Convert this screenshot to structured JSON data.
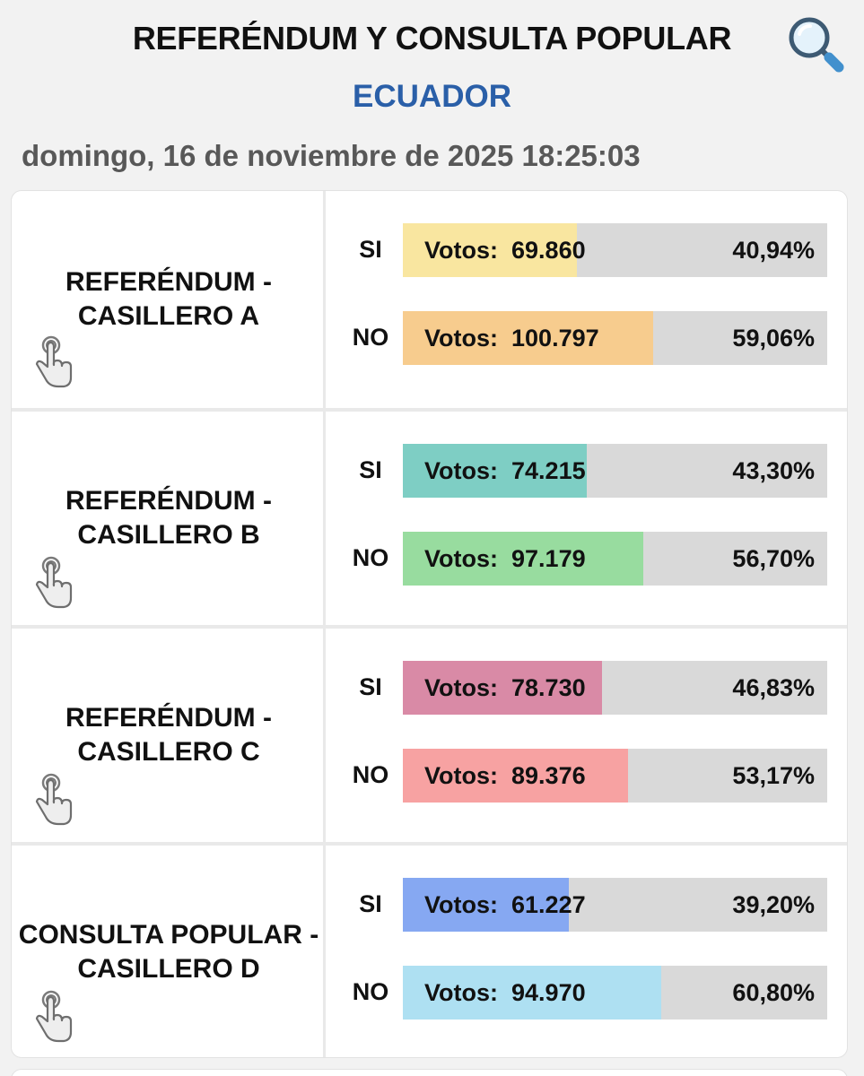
{
  "header": {
    "title": "REFERÉNDUM Y CONSULTA POPULAR",
    "subtitle": "ECUADOR",
    "datetime": "domingo, 16 de noviembre de 2025 18:25:03",
    "search_icon": "search-icon"
  },
  "colors": {
    "title": "#111111",
    "subtitle": "#2a5fa8",
    "datetime": "#585858",
    "bar_track": "#d9d9d9"
  },
  "questions": [
    {
      "name": "REFERÉNDUM - CASILLERO A",
      "icon": "tap-hand-icon",
      "options": [
        {
          "label": "SI",
          "votes_prefix": "Votos:",
          "votes": "69.860",
          "percent": "40,94%",
          "share": 40.94,
          "color": "#f9e6a0"
        },
        {
          "label": "NO",
          "votes_prefix": "Votos:",
          "votes": "100.797",
          "percent": "59,06%",
          "share": 59.06,
          "color": "#f7cc8e"
        }
      ]
    },
    {
      "name": "REFERÉNDUM - CASILLERO B",
      "icon": "tap-hand-icon",
      "options": [
        {
          "label": "SI",
          "votes_prefix": "Votos:",
          "votes": "74.215",
          "percent": "43,30%",
          "share": 43.3,
          "color": "#7ecec4"
        },
        {
          "label": "NO",
          "votes_prefix": "Votos:",
          "votes": "97.179",
          "percent": "56,70%",
          "share": 56.7,
          "color": "#98dc9f"
        }
      ]
    },
    {
      "name": "REFERÉNDUM - CASILLERO C",
      "icon": "tap-hand-icon",
      "options": [
        {
          "label": "SI",
          "votes_prefix": "Votos:",
          "votes": "78.730",
          "percent": "46,83%",
          "share": 46.83,
          "color": "#d98aa6"
        },
        {
          "label": "NO",
          "votes_prefix": "Votos:",
          "votes": "89.376",
          "percent": "53,17%",
          "share": 53.17,
          "color": "#f7a2a2"
        }
      ]
    },
    {
      "name": "CONSULTA POPULAR - CASILLERO D",
      "icon": "tap-hand-icon",
      "options": [
        {
          "label": "SI",
          "votes_prefix": "Votos:",
          "votes": "61.227",
          "percent": "39,20%",
          "share": 39.2,
          "color": "#86a8f2"
        },
        {
          "label": "NO",
          "votes_prefix": "Votos:",
          "votes": "94.970",
          "percent": "60,80%",
          "share": 60.8,
          "color": "#aee0f2"
        }
      ]
    }
  ]
}
